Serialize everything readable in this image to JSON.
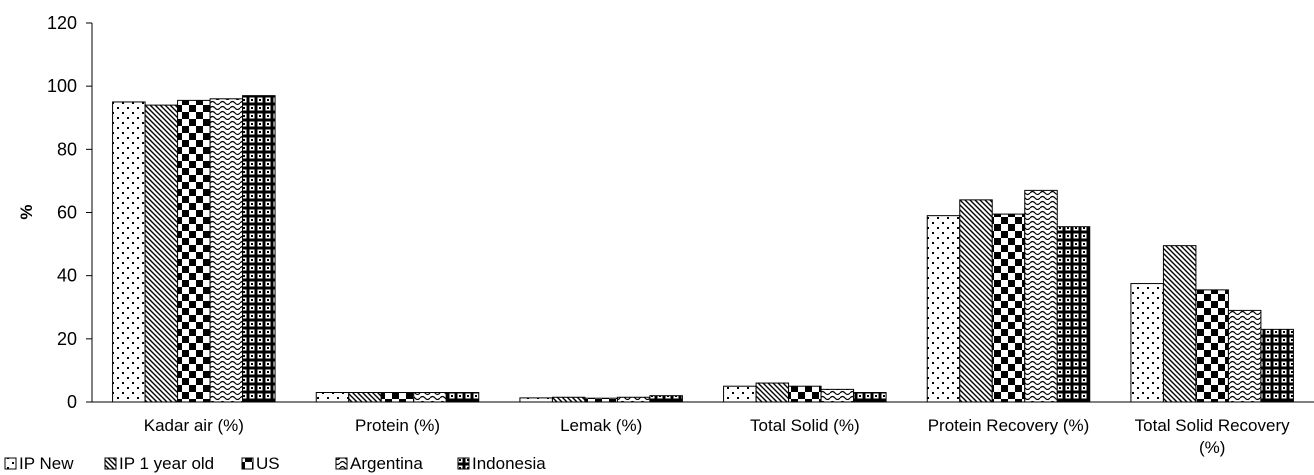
{
  "chart_data": {
    "type": "bar",
    "title": "",
    "xlabel": "",
    "ylabel": "%",
    "ylim": [
      0,
      120
    ],
    "yticks": [
      "0",
      "20",
      "40",
      "60",
      "80",
      "100",
      "120"
    ],
    "grid": false,
    "legend_position": "bottom-left",
    "categories": [
      [
        "Kadar air (%)"
      ],
      [
        "Protein (%)"
      ],
      [
        "Lemak (%)"
      ],
      [
        "Total Solid (%)"
      ],
      [
        "Protein Recovery (%)"
      ],
      [
        "Total Solid Recovery",
        "(%)"
      ]
    ],
    "series": [
      {
        "name": "IP New",
        "pattern": "dots",
        "values": [
          95,
          3,
          1.3,
          5,
          59,
          37.5
        ]
      },
      {
        "name": "IP 1 year old",
        "pattern": "diagonal",
        "values": [
          94,
          3,
          1.5,
          6,
          64,
          49.5
        ]
      },
      {
        "name": "US",
        "pattern": "checker",
        "values": [
          95.5,
          3,
          1.2,
          5,
          59.5,
          35.5
        ]
      },
      {
        "name": "Argentina",
        "pattern": "weave",
        "values": [
          96,
          3,
          1.5,
          4,
          67,
          29
        ]
      },
      {
        "name": "Indonesia",
        "pattern": "grid",
        "values": [
          97,
          3,
          2,
          3,
          55.5,
          23
        ]
      }
    ]
  }
}
